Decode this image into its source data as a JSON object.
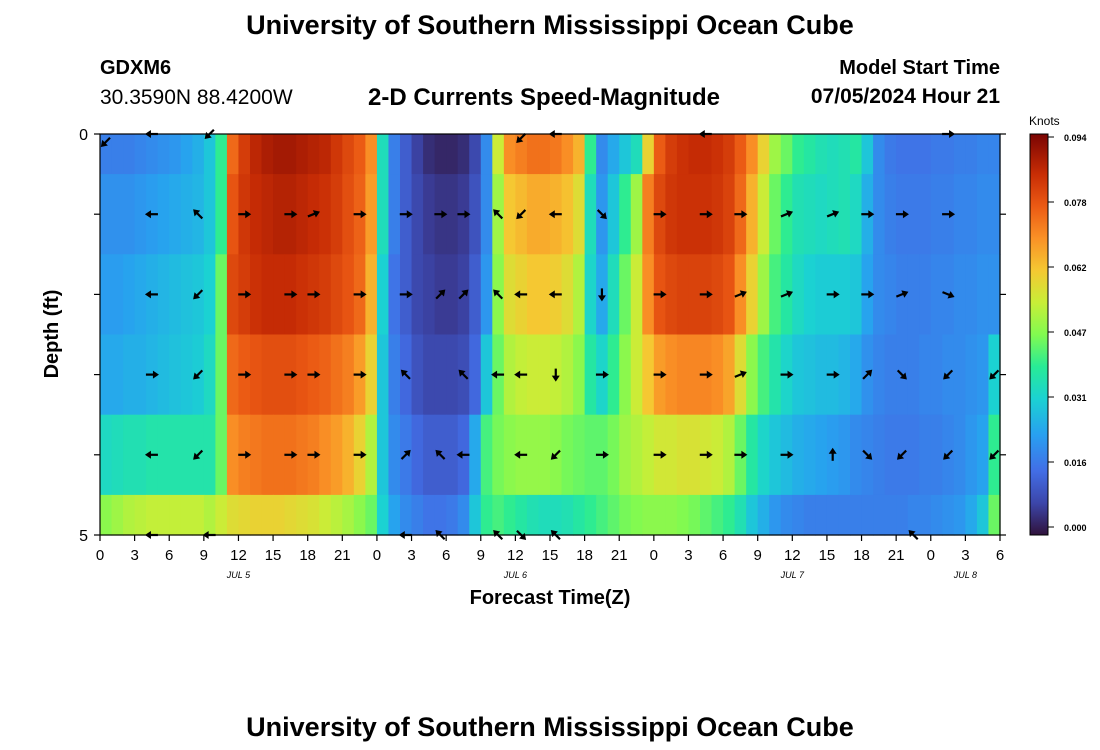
{
  "header": {
    "title": "University of Southern Mississippi Ocean Cube",
    "station": "GDXM6",
    "coords": "30.3590N  88.4200W",
    "subtitle": "2-D Currents Speed-Magnitude",
    "model_start_label": "Model Start Time",
    "model_start_value": "07/05/2024 Hour 21",
    "footer_title": "University of Southern Mississippi Ocean Cube"
  },
  "chart_data": {
    "type": "heatmap",
    "title": "2-D Currents Speed-Magnitude",
    "xlabel": "Forecast Time(Z)",
    "ylabel": "Depth (ft)",
    "xlim": [
      0,
      78
    ],
    "ylim": [
      0,
      5
    ],
    "x_ticks": [
      0,
      3,
      6,
      9,
      12,
      15,
      18,
      21,
      24,
      27,
      30,
      33,
      36,
      39,
      42,
      45,
      48,
      51,
      54,
      57,
      60,
      63,
      66,
      69,
      72,
      75,
      78
    ],
    "x_tick_labels": [
      "0",
      "3",
      "6",
      "9",
      "12",
      "15",
      "18",
      "21",
      "0",
      "3",
      "6",
      "9",
      "12",
      "15",
      "18",
      "21",
      "0",
      "3",
      "6",
      "9",
      "12",
      "15",
      "18",
      "21",
      "0",
      "3",
      "6"
    ],
    "y_tick_labels": [
      {
        "value": 0,
        "label": "0"
      },
      {
        "value": 5,
        "label": "5"
      }
    ],
    "date_labels": [
      {
        "x": 12,
        "label": "JUL 5"
      },
      {
        "x": 36,
        "label": "JUL 6"
      },
      {
        "x": 60,
        "label": "JUL 7"
      },
      {
        "x": 75,
        "label": "JUL 8"
      }
    ],
    "colorbar": {
      "unit": "Knots",
      "min": 0,
      "max": 0.094,
      "ticks": [
        "0.094",
        "0.078",
        "0.062",
        "0.047",
        "0.031",
        "0.016",
        "0.000"
      ]
    },
    "time_columns": [
      0,
      1,
      2,
      3,
      4,
      5,
      6,
      7,
      8,
      9,
      10,
      11,
      12,
      13,
      14,
      15,
      16,
      17,
      18,
      19,
      20,
      21,
      22,
      23,
      24,
      25,
      26,
      27,
      28,
      29,
      30,
      31,
      32,
      33,
      34,
      35,
      36,
      37,
      38,
      39,
      40,
      41,
      42,
      43,
      44,
      45,
      46,
      47,
      48,
      49,
      50,
      51,
      52,
      53,
      54,
      55,
      56,
      57,
      58,
      59,
      60,
      61,
      62,
      63,
      64,
      65,
      66,
      67,
      68,
      69,
      70,
      71,
      72,
      73,
      74,
      75,
      76,
      77
    ],
    "depth_bands": [
      [
        0,
        0.5
      ],
      [
        0.5,
        1.5
      ],
      [
        1.5,
        2.5
      ],
      [
        2.5,
        3.5
      ],
      [
        3.5,
        4.5
      ],
      [
        4.5,
        5
      ]
    ],
    "speed_knots": [
      [
        0.018,
        0.018,
        0.018,
        0.019,
        0.02,
        0.021,
        0.022,
        0.024,
        0.026,
        0.03,
        0.04,
        0.075,
        0.082,
        0.086,
        0.088,
        0.089,
        0.089,
        0.088,
        0.087,
        0.086,
        0.083,
        0.08,
        0.077,
        0.07,
        0.035,
        0.018,
        0.012,
        0.007,
        0.004,
        0.003,
        0.003,
        0.004,
        0.008,
        0.02,
        0.055,
        0.07,
        0.072,
        0.074,
        0.074,
        0.073,
        0.07,
        0.065,
        0.04,
        0.02,
        0.025,
        0.03,
        0.035,
        0.06,
        0.077,
        0.082,
        0.084,
        0.085,
        0.085,
        0.084,
        0.082,
        0.077,
        0.07,
        0.06,
        0.05,
        0.045,
        0.04,
        0.038,
        0.036,
        0.035,
        0.036,
        0.038,
        0.03,
        0.02,
        0.017,
        0.016,
        0.016,
        0.016,
        0.017,
        0.017,
        0.018,
        0.018,
        0.019,
        0.019
      ],
      [
        0.021,
        0.021,
        0.021,
        0.022,
        0.023,
        0.024,
        0.025,
        0.026,
        0.027,
        0.03,
        0.04,
        0.078,
        0.083,
        0.085,
        0.086,
        0.087,
        0.087,
        0.086,
        0.085,
        0.084,
        0.082,
        0.079,
        0.076,
        0.068,
        0.035,
        0.018,
        0.012,
        0.008,
        0.006,
        0.005,
        0.005,
        0.006,
        0.01,
        0.02,
        0.05,
        0.062,
        0.064,
        0.066,
        0.066,
        0.065,
        0.063,
        0.058,
        0.035,
        0.022,
        0.03,
        0.04,
        0.05,
        0.072,
        0.08,
        0.083,
        0.084,
        0.084,
        0.084,
        0.083,
        0.081,
        0.075,
        0.065,
        0.055,
        0.045,
        0.04,
        0.036,
        0.035,
        0.034,
        0.035,
        0.036,
        0.034,
        0.026,
        0.02,
        0.018,
        0.017,
        0.017,
        0.017,
        0.018,
        0.018,
        0.019,
        0.019,
        0.02,
        0.02
      ],
      [
        0.023,
        0.023,
        0.024,
        0.025,
        0.026,
        0.027,
        0.028,
        0.029,
        0.03,
        0.032,
        0.045,
        0.08,
        0.082,
        0.084,
        0.085,
        0.085,
        0.085,
        0.084,
        0.083,
        0.082,
        0.08,
        0.078,
        0.075,
        0.065,
        0.032,
        0.016,
        0.012,
        0.008,
        0.007,
        0.006,
        0.006,
        0.007,
        0.012,
        0.022,
        0.048,
        0.058,
        0.06,
        0.062,
        0.062,
        0.061,
        0.058,
        0.052,
        0.033,
        0.025,
        0.035,
        0.045,
        0.055,
        0.07,
        0.078,
        0.08,
        0.081,
        0.081,
        0.081,
        0.08,
        0.078,
        0.07,
        0.06,
        0.05,
        0.042,
        0.038,
        0.034,
        0.032,
        0.031,
        0.031,
        0.031,
        0.03,
        0.024,
        0.02,
        0.019,
        0.018,
        0.018,
        0.018,
        0.019,
        0.019,
        0.02,
        0.02,
        0.021,
        0.021
      ],
      [
        0.025,
        0.025,
        0.026,
        0.026,
        0.027,
        0.028,
        0.029,
        0.03,
        0.031,
        0.034,
        0.045,
        0.075,
        0.077,
        0.078,
        0.079,
        0.079,
        0.079,
        0.078,
        0.077,
        0.076,
        0.074,
        0.072,
        0.068,
        0.06,
        0.03,
        0.018,
        0.014,
        0.01,
        0.008,
        0.008,
        0.008,
        0.009,
        0.014,
        0.03,
        0.045,
        0.052,
        0.054,
        0.055,
        0.055,
        0.054,
        0.052,
        0.048,
        0.038,
        0.033,
        0.04,
        0.048,
        0.055,
        0.062,
        0.068,
        0.07,
        0.071,
        0.071,
        0.071,
        0.07,
        0.067,
        0.058,
        0.048,
        0.042,
        0.037,
        0.033,
        0.03,
        0.029,
        0.028,
        0.028,
        0.027,
        0.025,
        0.021,
        0.019,
        0.018,
        0.018,
        0.018,
        0.019,
        0.019,
        0.02,
        0.02,
        0.021,
        0.022,
        0.032
      ],
      [
        0.034,
        0.035,
        0.036,
        0.036,
        0.037,
        0.037,
        0.037,
        0.037,
        0.037,
        0.037,
        0.045,
        0.07,
        0.072,
        0.073,
        0.074,
        0.074,
        0.074,
        0.073,
        0.072,
        0.07,
        0.068,
        0.065,
        0.06,
        0.052,
        0.03,
        0.02,
        0.017,
        0.014,
        0.012,
        0.012,
        0.012,
        0.014,
        0.025,
        0.042,
        0.046,
        0.048,
        0.049,
        0.049,
        0.049,
        0.048,
        0.046,
        0.045,
        0.044,
        0.044,
        0.046,
        0.05,
        0.052,
        0.054,
        0.056,
        0.056,
        0.057,
        0.057,
        0.056,
        0.055,
        0.052,
        0.045,
        0.038,
        0.033,
        0.03,
        0.028,
        0.026,
        0.025,
        0.024,
        0.023,
        0.022,
        0.02,
        0.019,
        0.018,
        0.017,
        0.017,
        0.017,
        0.018,
        0.018,
        0.019,
        0.02,
        0.022,
        0.024,
        0.04
      ],
      [
        0.048,
        0.05,
        0.052,
        0.053,
        0.054,
        0.054,
        0.054,
        0.054,
        0.054,
        0.052,
        0.055,
        0.058,
        0.059,
        0.06,
        0.06,
        0.06,
        0.059,
        0.058,
        0.057,
        0.055,
        0.053,
        0.051,
        0.048,
        0.045,
        0.032,
        0.024,
        0.02,
        0.018,
        0.016,
        0.016,
        0.017,
        0.02,
        0.03,
        0.04,
        0.042,
        0.04,
        0.038,
        0.036,
        0.035,
        0.035,
        0.036,
        0.038,
        0.04,
        0.042,
        0.044,
        0.046,
        0.047,
        0.048,
        0.048,
        0.048,
        0.047,
        0.046,
        0.044,
        0.042,
        0.04,
        0.036,
        0.03,
        0.026,
        0.022,
        0.02,
        0.019,
        0.018,
        0.018,
        0.018,
        0.018,
        0.018,
        0.018,
        0.018,
        0.018,
        0.018,
        0.019,
        0.019,
        0.02,
        0.021,
        0.022,
        0.025,
        0.03,
        0.045
      ]
    ],
    "vectors": [
      {
        "time": 0,
        "depth": 0.1,
        "dir": "SW"
      },
      {
        "time": 4,
        "depth": 0.0,
        "dir": "W"
      },
      {
        "time": 9,
        "depth": 0.0,
        "dir": "SW"
      },
      {
        "time": 36,
        "depth": 0.05,
        "dir": "SW"
      },
      {
        "time": 39,
        "depth": 0.0,
        "dir": "W"
      },
      {
        "time": 52,
        "depth": 0.0,
        "dir": "W"
      },
      {
        "time": 73,
        "depth": 0.0,
        "dir": "E"
      },
      {
        "time": 4,
        "depth": 1.0,
        "dir": "W"
      },
      {
        "time": 8,
        "depth": 1.0,
        "dir": "NW"
      },
      {
        "time": 12,
        "depth": 1.0,
        "dir": "E"
      },
      {
        "time": 16,
        "depth": 1.0,
        "dir": "E"
      },
      {
        "time": 18,
        "depth": 1.0,
        "dir": "ENE"
      },
      {
        "time": 22,
        "depth": 1.0,
        "dir": "E"
      },
      {
        "time": 26,
        "depth": 1.0,
        "dir": "E"
      },
      {
        "time": 29,
        "depth": 1.0,
        "dir": "E"
      },
      {
        "time": 31,
        "depth": 1.0,
        "dir": "E"
      },
      {
        "time": 34,
        "depth": 1.0,
        "dir": "NW"
      },
      {
        "time": 36,
        "depth": 1.0,
        "dir": "SW"
      },
      {
        "time": 39,
        "depth": 1.0,
        "dir": "W"
      },
      {
        "time": 43,
        "depth": 1.0,
        "dir": "SE"
      },
      {
        "time": 48,
        "depth": 1.0,
        "dir": "E"
      },
      {
        "time": 52,
        "depth": 1.0,
        "dir": "E"
      },
      {
        "time": 55,
        "depth": 1.0,
        "dir": "E"
      },
      {
        "time": 59,
        "depth": 1.0,
        "dir": "ENE"
      },
      {
        "time": 63,
        "depth": 1.0,
        "dir": "ENE"
      },
      {
        "time": 66,
        "depth": 1.0,
        "dir": "E"
      },
      {
        "time": 69,
        "depth": 1.0,
        "dir": "E"
      },
      {
        "time": 73,
        "depth": 1.0,
        "dir": "E"
      },
      {
        "time": 4,
        "depth": 2.0,
        "dir": "W"
      },
      {
        "time": 8,
        "depth": 2.0,
        "dir": "SW"
      },
      {
        "time": 12,
        "depth": 2.0,
        "dir": "E"
      },
      {
        "time": 16,
        "depth": 2.0,
        "dir": "E"
      },
      {
        "time": 18,
        "depth": 2.0,
        "dir": "E"
      },
      {
        "time": 22,
        "depth": 2.0,
        "dir": "E"
      },
      {
        "time": 26,
        "depth": 2.0,
        "dir": "E"
      },
      {
        "time": 29,
        "depth": 2.0,
        "dir": "NE"
      },
      {
        "time": 31,
        "depth": 2.0,
        "dir": "NE"
      },
      {
        "time": 34,
        "depth": 2.0,
        "dir": "NW"
      },
      {
        "time": 36,
        "depth": 2.0,
        "dir": "W"
      },
      {
        "time": 39,
        "depth": 2.0,
        "dir": "W"
      },
      {
        "time": 43,
        "depth": 2.0,
        "dir": "S"
      },
      {
        "time": 48,
        "depth": 2.0,
        "dir": "E"
      },
      {
        "time": 52,
        "depth": 2.0,
        "dir": "E"
      },
      {
        "time": 55,
        "depth": 2.0,
        "dir": "ENE"
      },
      {
        "time": 59,
        "depth": 2.0,
        "dir": "ENE"
      },
      {
        "time": 63,
        "depth": 2.0,
        "dir": "E"
      },
      {
        "time": 66,
        "depth": 2.0,
        "dir": "E"
      },
      {
        "time": 69,
        "depth": 2.0,
        "dir": "ENE"
      },
      {
        "time": 73,
        "depth": 2.0,
        "dir": "ESE"
      },
      {
        "time": 4,
        "depth": 3.0,
        "dir": "E"
      },
      {
        "time": 8,
        "depth": 3.0,
        "dir": "SW"
      },
      {
        "time": 12,
        "depth": 3.0,
        "dir": "E"
      },
      {
        "time": 16,
        "depth": 3.0,
        "dir": "E"
      },
      {
        "time": 18,
        "depth": 3.0,
        "dir": "E"
      },
      {
        "time": 22,
        "depth": 3.0,
        "dir": "E"
      },
      {
        "time": 26,
        "depth": 3.0,
        "dir": "NW"
      },
      {
        "time": 31,
        "depth": 3.0,
        "dir": "NW"
      },
      {
        "time": 34,
        "depth": 3.0,
        "dir": "W"
      },
      {
        "time": 36,
        "depth": 3.0,
        "dir": "W"
      },
      {
        "time": 39,
        "depth": 3.0,
        "dir": "S"
      },
      {
        "time": 43,
        "depth": 3.0,
        "dir": "E"
      },
      {
        "time": 48,
        "depth": 3.0,
        "dir": "E"
      },
      {
        "time": 52,
        "depth": 3.0,
        "dir": "E"
      },
      {
        "time": 55,
        "depth": 3.0,
        "dir": "ENE"
      },
      {
        "time": 59,
        "depth": 3.0,
        "dir": "E"
      },
      {
        "time": 63,
        "depth": 3.0,
        "dir": "E"
      },
      {
        "time": 66,
        "depth": 3.0,
        "dir": "NE"
      },
      {
        "time": 69,
        "depth": 3.0,
        "dir": "SE"
      },
      {
        "time": 73,
        "depth": 3.0,
        "dir": "SW"
      },
      {
        "time": 77,
        "depth": 3.0,
        "dir": "SW"
      },
      {
        "time": 4,
        "depth": 4.0,
        "dir": "W"
      },
      {
        "time": 8,
        "depth": 4.0,
        "dir": "SW"
      },
      {
        "time": 12,
        "depth": 4.0,
        "dir": "E"
      },
      {
        "time": 16,
        "depth": 4.0,
        "dir": "E"
      },
      {
        "time": 18,
        "depth": 4.0,
        "dir": "E"
      },
      {
        "time": 22,
        "depth": 4.0,
        "dir": "E"
      },
      {
        "time": 26,
        "depth": 4.0,
        "dir": "NE"
      },
      {
        "time": 29,
        "depth": 4.0,
        "dir": "NW"
      },
      {
        "time": 31,
        "depth": 4.0,
        "dir": "W"
      },
      {
        "time": 36,
        "depth": 4.0,
        "dir": "W"
      },
      {
        "time": 39,
        "depth": 4.0,
        "dir": "SW"
      },
      {
        "time": 43,
        "depth": 4.0,
        "dir": "E"
      },
      {
        "time": 48,
        "depth": 4.0,
        "dir": "E"
      },
      {
        "time": 52,
        "depth": 4.0,
        "dir": "E"
      },
      {
        "time": 55,
        "depth": 4.0,
        "dir": "E"
      },
      {
        "time": 59,
        "depth": 4.0,
        "dir": "E"
      },
      {
        "time": 63,
        "depth": 4.0,
        "dir": "N"
      },
      {
        "time": 66,
        "depth": 4.0,
        "dir": "SE"
      },
      {
        "time": 69,
        "depth": 4.0,
        "dir": "SW"
      },
      {
        "time": 73,
        "depth": 4.0,
        "dir": "SW"
      },
      {
        "time": 77,
        "depth": 4.0,
        "dir": "SW"
      },
      {
        "time": 4,
        "depth": 5.0,
        "dir": "W"
      },
      {
        "time": 9,
        "depth": 5.0,
        "dir": "W"
      },
      {
        "time": 26,
        "depth": 5.0,
        "dir": "W"
      },
      {
        "time": 29,
        "depth": 5.0,
        "dir": "NW"
      },
      {
        "time": 34,
        "depth": 5.0,
        "dir": "NW"
      },
      {
        "time": 36,
        "depth": 5.0,
        "dir": "SE"
      },
      {
        "time": 39,
        "depth": 5.0,
        "dir": "NW"
      },
      {
        "time": 70,
        "depth": 5.0,
        "dir": "NW"
      }
    ]
  }
}
